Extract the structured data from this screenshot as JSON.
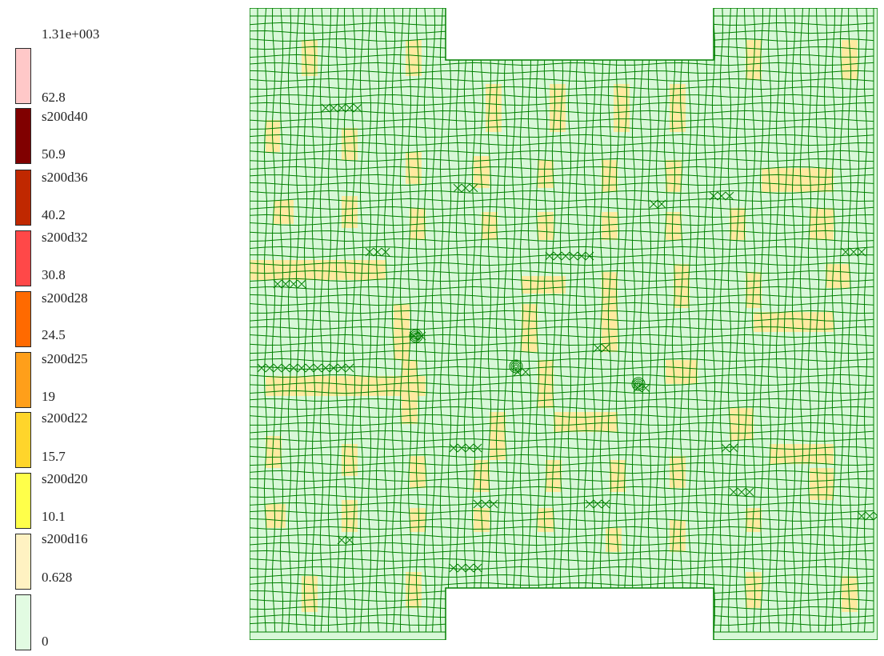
{
  "legend": {
    "items": [
      {
        "top": "1.31e+003",
        "bottom": "62.8",
        "color": "#ffc8c8"
      },
      {
        "top": "s200d40",
        "bottom": "50.9",
        "color": "#800000"
      },
      {
        "top": "s200d36",
        "bottom": "40.2",
        "color": "#c02800"
      },
      {
        "top": "s200d32",
        "bottom": "30.8",
        "color": "#ff4848"
      },
      {
        "top": "s200d28",
        "bottom": "24.5",
        "color": "#ff6a00"
      },
      {
        "top": "s200d25",
        "bottom": "19",
        "color": "#ff9f1a"
      },
      {
        "top": "s200d22",
        "bottom": "15.7",
        "color": "#ffd52b"
      },
      {
        "top": "s200d20",
        "bottom": "10.1",
        "color": "#ffff4a"
      },
      {
        "top": "s200d16",
        "bottom": "0.628",
        "color": "#fff2c2"
      },
      {
        "top": "",
        "bottom": "0",
        "color": "#e2fbe2"
      }
    ]
  },
  "mesh": {
    "line_color": "#008000",
    "fill_color": "#d8f8d8",
    "highlight_color": "#ffeaa0"
  }
}
